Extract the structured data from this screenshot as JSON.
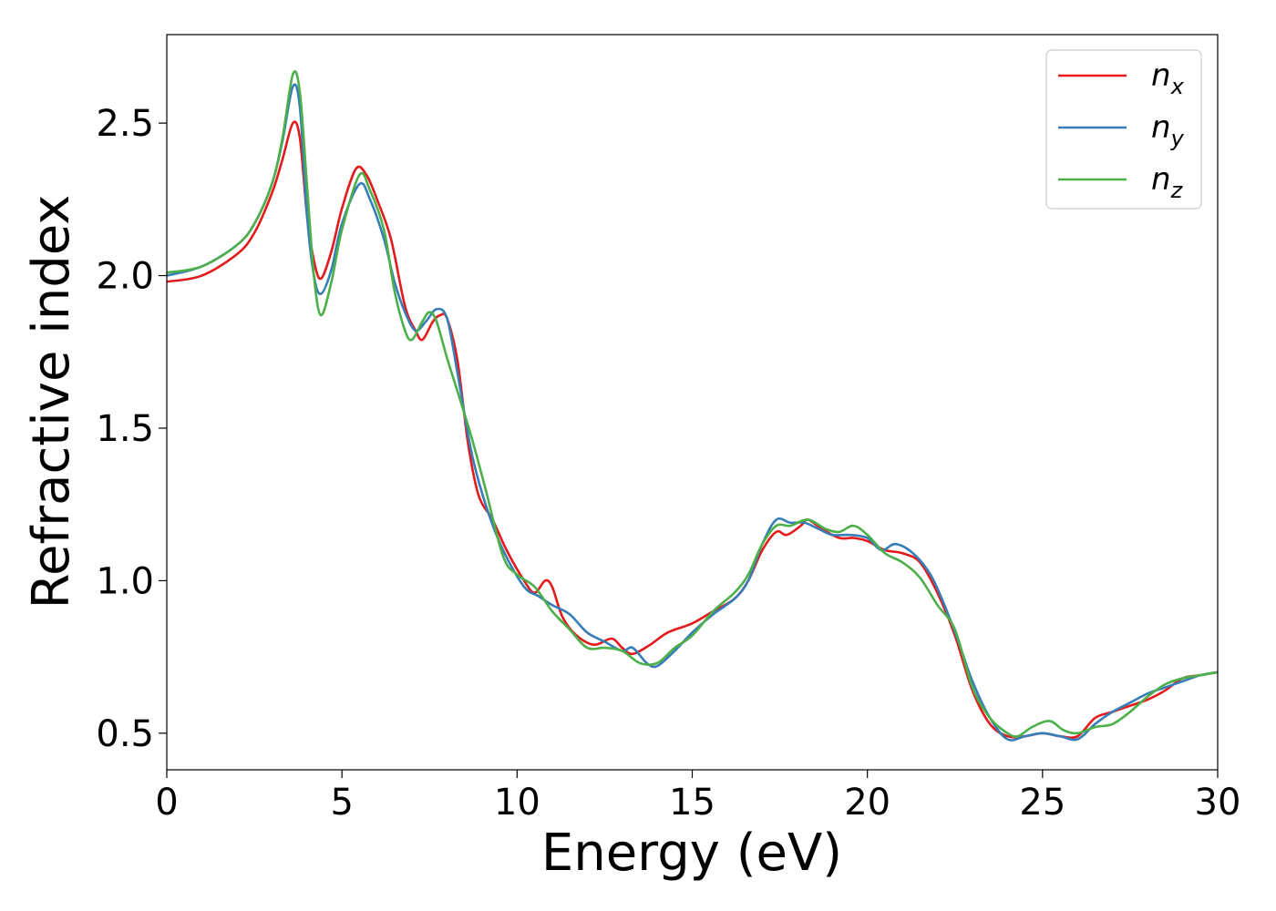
{
  "chart_data": {
    "type": "line",
    "title": "",
    "xlabel": "Energy (eV)",
    "ylabel": "Refractive index",
    "xlim": [
      0,
      30
    ],
    "ylim": [
      0.38,
      2.79
    ],
    "xticks": [
      0,
      5,
      10,
      15,
      20,
      25,
      30
    ],
    "xtick_labels": [
      "0",
      "5",
      "10",
      "15",
      "20",
      "25",
      "30"
    ],
    "yticks": [
      0.5,
      1.0,
      1.5,
      2.0,
      2.5
    ],
    "ytick_labels": [
      "0.5",
      "1.0",
      "1.5",
      "2.0",
      "2.5"
    ],
    "grid": false,
    "legend_position": "top-right",
    "series": [
      {
        "name": "n_x",
        "legend_base": "n",
        "legend_sub": "x",
        "color": "#e41a1c",
        "points": [
          [
            0,
            1.98
          ],
          [
            1,
            2.0
          ],
          [
            2,
            2.07
          ],
          [
            2.5,
            2.14
          ],
          [
            3,
            2.27
          ],
          [
            3.3,
            2.38
          ],
          [
            3.6,
            2.5
          ],
          [
            3.8,
            2.45
          ],
          [
            4.0,
            2.2
          ],
          [
            4.2,
            2.05
          ],
          [
            4.4,
            1.99
          ],
          [
            4.7,
            2.08
          ],
          [
            5.0,
            2.22
          ],
          [
            5.4,
            2.35
          ],
          [
            5.7,
            2.33
          ],
          [
            6.0,
            2.25
          ],
          [
            6.4,
            2.12
          ],
          [
            6.8,
            1.9
          ],
          [
            7.1,
            1.82
          ],
          [
            7.3,
            1.79
          ],
          [
            7.6,
            1.85
          ],
          [
            7.8,
            1.87
          ],
          [
            8.0,
            1.86
          ],
          [
            8.3,
            1.72
          ],
          [
            8.6,
            1.45
          ],
          [
            8.9,
            1.28
          ],
          [
            9.3,
            1.2
          ],
          [
            9.7,
            1.1
          ],
          [
            10.2,
            1.0
          ],
          [
            10.5,
            0.96
          ],
          [
            10.8,
            1.0
          ],
          [
            11.0,
            0.98
          ],
          [
            11.3,
            0.88
          ],
          [
            11.7,
            0.82
          ],
          [
            12.2,
            0.79
          ],
          [
            12.7,
            0.81
          ],
          [
            13.0,
            0.78
          ],
          [
            13.3,
            0.76
          ],
          [
            13.8,
            0.79
          ],
          [
            14.3,
            0.83
          ],
          [
            15.0,
            0.86
          ],
          [
            15.6,
            0.9
          ],
          [
            16.2,
            0.94
          ],
          [
            16.6,
            1.0
          ],
          [
            17.0,
            1.1
          ],
          [
            17.4,
            1.16
          ],
          [
            17.7,
            1.15
          ],
          [
            18.1,
            1.18
          ],
          [
            18.3,
            1.2
          ],
          [
            18.7,
            1.17
          ],
          [
            19.2,
            1.14
          ],
          [
            19.6,
            1.14
          ],
          [
            20.0,
            1.13
          ],
          [
            20.5,
            1.1
          ],
          [
            21.0,
            1.09
          ],
          [
            21.5,
            1.06
          ],
          [
            22.0,
            0.96
          ],
          [
            22.5,
            0.82
          ],
          [
            23.0,
            0.64
          ],
          [
            23.5,
            0.53
          ],
          [
            24.0,
            0.49
          ],
          [
            24.5,
            0.49
          ],
          [
            25.0,
            0.5
          ],
          [
            25.5,
            0.49
          ],
          [
            26.0,
            0.49
          ],
          [
            26.5,
            0.55
          ],
          [
            27.0,
            0.57
          ],
          [
            27.5,
            0.59
          ],
          [
            28.0,
            0.61
          ],
          [
            28.5,
            0.64
          ],
          [
            29.0,
            0.68
          ],
          [
            29.5,
            0.69
          ],
          [
            30.0,
            0.7
          ]
        ]
      },
      {
        "name": "n_y",
        "legend_base": "n",
        "legend_sub": "y",
        "color": "#377eb8",
        "points": [
          [
            0,
            2.0
          ],
          [
            1,
            2.03
          ],
          [
            2,
            2.1
          ],
          [
            2.5,
            2.17
          ],
          [
            3,
            2.3
          ],
          [
            3.3,
            2.44
          ],
          [
            3.6,
            2.62
          ],
          [
            3.8,
            2.55
          ],
          [
            4.0,
            2.2
          ],
          [
            4.2,
            2.0
          ],
          [
            4.4,
            1.94
          ],
          [
            4.7,
            2.02
          ],
          [
            5.0,
            2.17
          ],
          [
            5.5,
            2.3
          ],
          [
            5.8,
            2.25
          ],
          [
            6.2,
            2.12
          ],
          [
            6.5,
            1.98
          ],
          [
            6.8,
            1.88
          ],
          [
            7.1,
            1.82
          ],
          [
            7.4,
            1.85
          ],
          [
            7.7,
            1.89
          ],
          [
            8.0,
            1.86
          ],
          [
            8.3,
            1.68
          ],
          [
            8.7,
            1.42
          ],
          [
            9.1,
            1.25
          ],
          [
            9.6,
            1.1
          ],
          [
            10.2,
            0.98
          ],
          [
            10.6,
            0.95
          ],
          [
            11.0,
            0.92
          ],
          [
            11.5,
            0.89
          ],
          [
            12.0,
            0.83
          ],
          [
            12.5,
            0.8
          ],
          [
            13.0,
            0.77
          ],
          [
            13.3,
            0.78
          ],
          [
            13.7,
            0.73
          ],
          [
            14.0,
            0.72
          ],
          [
            14.5,
            0.77
          ],
          [
            15.0,
            0.83
          ],
          [
            15.6,
            0.89
          ],
          [
            16.2,
            0.94
          ],
          [
            16.6,
            1.0
          ],
          [
            17.0,
            1.12
          ],
          [
            17.4,
            1.2
          ],
          [
            17.8,
            1.19
          ],
          [
            18.2,
            1.19
          ],
          [
            18.6,
            1.17
          ],
          [
            19.0,
            1.15
          ],
          [
            19.5,
            1.15
          ],
          [
            20.0,
            1.14
          ],
          [
            20.4,
            1.1
          ],
          [
            20.8,
            1.12
          ],
          [
            21.3,
            1.09
          ],
          [
            21.8,
            1.02
          ],
          [
            22.2,
            0.92
          ],
          [
            22.6,
            0.8
          ],
          [
            23.0,
            0.67
          ],
          [
            23.5,
            0.55
          ],
          [
            24.0,
            0.48
          ],
          [
            24.5,
            0.49
          ],
          [
            25.0,
            0.5
          ],
          [
            25.5,
            0.49
          ],
          [
            26.0,
            0.48
          ],
          [
            26.5,
            0.53
          ],
          [
            27.0,
            0.57
          ],
          [
            27.5,
            0.6
          ],
          [
            28.0,
            0.63
          ],
          [
            28.5,
            0.65
          ],
          [
            29.0,
            0.67
          ],
          [
            29.5,
            0.69
          ],
          [
            30.0,
            0.7
          ]
        ]
      },
      {
        "name": "n_z",
        "legend_base": "n",
        "legend_sub": "z",
        "color": "#4daf4a",
        "points": [
          [
            0,
            2.01
          ],
          [
            1,
            2.03
          ],
          [
            2,
            2.1
          ],
          [
            2.5,
            2.17
          ],
          [
            3,
            2.3
          ],
          [
            3.3,
            2.45
          ],
          [
            3.6,
            2.66
          ],
          [
            3.8,
            2.6
          ],
          [
            4.0,
            2.3
          ],
          [
            4.2,
            2.0
          ],
          [
            4.4,
            1.87
          ],
          [
            4.7,
            1.98
          ],
          [
            5.0,
            2.15
          ],
          [
            5.5,
            2.33
          ],
          [
            5.8,
            2.28
          ],
          [
            6.2,
            2.15
          ],
          [
            6.5,
            1.95
          ],
          [
            6.8,
            1.82
          ],
          [
            7.0,
            1.79
          ],
          [
            7.3,
            1.85
          ],
          [
            7.5,
            1.88
          ],
          [
            7.7,
            1.85
          ],
          [
            8.0,
            1.73
          ],
          [
            8.3,
            1.62
          ],
          [
            8.7,
            1.47
          ],
          [
            9.1,
            1.3
          ],
          [
            9.6,
            1.08
          ],
          [
            10.0,
            1.02
          ],
          [
            10.5,
            0.98
          ],
          [
            11.0,
            0.9
          ],
          [
            11.5,
            0.84
          ],
          [
            12.0,
            0.78
          ],
          [
            12.5,
            0.78
          ],
          [
            13.0,
            0.77
          ],
          [
            13.5,
            0.73
          ],
          [
            14.0,
            0.73
          ],
          [
            14.5,
            0.78
          ],
          [
            15.0,
            0.82
          ],
          [
            15.6,
            0.9
          ],
          [
            16.2,
            0.96
          ],
          [
            16.6,
            1.02
          ],
          [
            17.0,
            1.12
          ],
          [
            17.4,
            1.18
          ],
          [
            17.8,
            1.18
          ],
          [
            18.3,
            1.2
          ],
          [
            18.8,
            1.17
          ],
          [
            19.2,
            1.16
          ],
          [
            19.6,
            1.18
          ],
          [
            20.0,
            1.15
          ],
          [
            20.5,
            1.09
          ],
          [
            21.0,
            1.06
          ],
          [
            21.5,
            1.01
          ],
          [
            22.0,
            0.92
          ],
          [
            22.5,
            0.84
          ],
          [
            23.0,
            0.65
          ],
          [
            23.5,
            0.55
          ],
          [
            24.0,
            0.5
          ],
          [
            24.3,
            0.49
          ],
          [
            24.7,
            0.52
          ],
          [
            25.2,
            0.54
          ],
          [
            25.6,
            0.51
          ],
          [
            26.0,
            0.5
          ],
          [
            26.5,
            0.52
          ],
          [
            27.0,
            0.53
          ],
          [
            27.5,
            0.57
          ],
          [
            28.0,
            0.62
          ],
          [
            28.5,
            0.66
          ],
          [
            29.0,
            0.68
          ],
          [
            29.5,
            0.69
          ],
          [
            30.0,
            0.7
          ]
        ]
      }
    ]
  }
}
